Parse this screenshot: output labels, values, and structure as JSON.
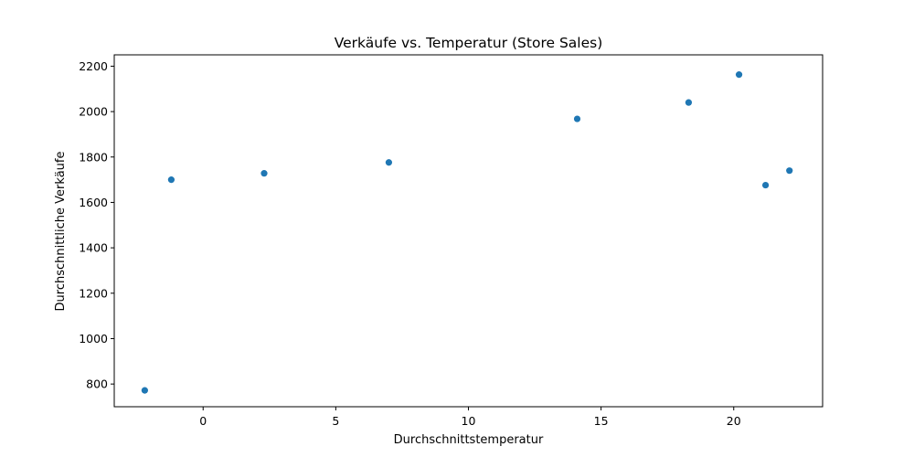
{
  "chart_data": {
    "type": "scatter",
    "title": "Verkäufe vs. Temperatur (Store Sales)",
    "xlabel": "Durchschnittstemperatur",
    "ylabel": "Durchschnittliche Verkäufe",
    "xlim": [
      -3.35,
      23.35
    ],
    "ylim": [
      700,
      2250
    ],
    "x_ticks": [
      0,
      5,
      10,
      15,
      20
    ],
    "x_tick_labels": [
      "0",
      "5",
      "10",
      "15",
      "20"
    ],
    "y_ticks": [
      800,
      1000,
      1200,
      1400,
      1600,
      1800,
      2000,
      2200
    ],
    "y_tick_labels": [
      "800",
      "1000",
      "1200",
      "1400",
      "1600",
      "1800",
      "2000",
      "2200"
    ],
    "grid": false,
    "marker_color": "#1f77b4",
    "series": [
      {
        "x": [
          -2.2,
          -1.2,
          2.3,
          7.0,
          14.1,
          18.3,
          20.2,
          21.2,
          22.1
        ],
        "y": [
          772,
          1700,
          1728,
          1776,
          1968,
          2040,
          2163,
          1676,
          1740
        ]
      }
    ]
  }
}
